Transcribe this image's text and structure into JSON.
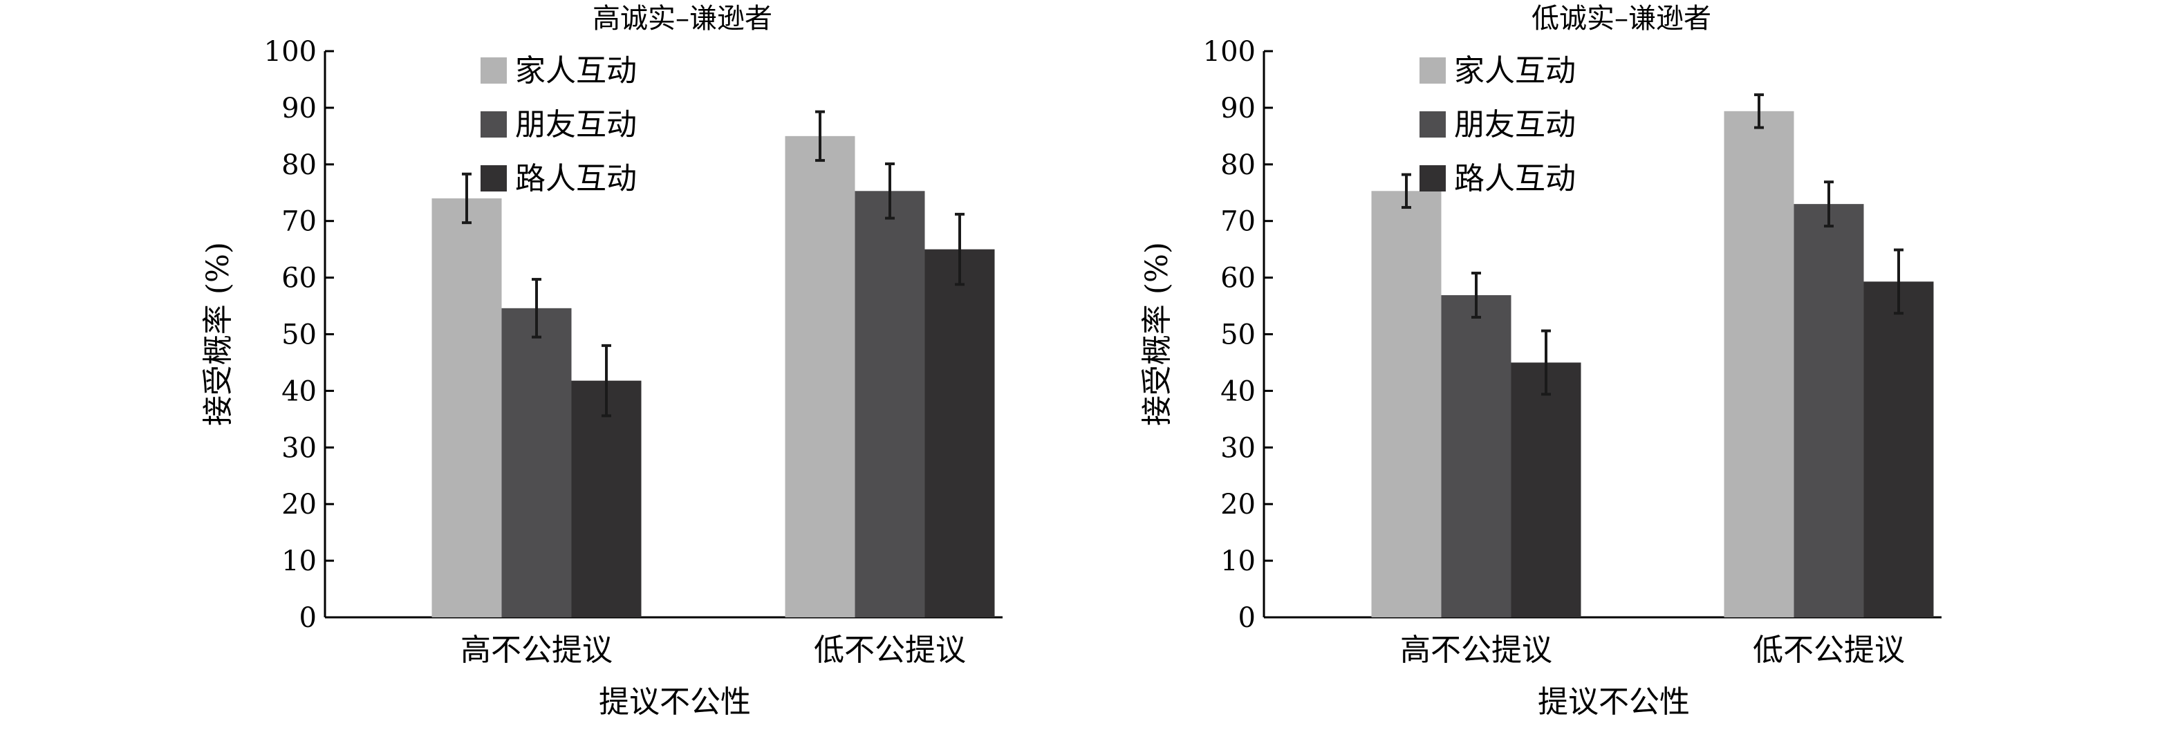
{
  "chart_data": [
    {
      "type": "bar",
      "title": "高诚实–谦逊者",
      "xlabel": "提议不公性",
      "ylabel": "接受概率 (%)",
      "ylim": [
        0,
        100
      ],
      "yticks": [
        0,
        10,
        20,
        30,
        40,
        50,
        60,
        70,
        80,
        90,
        100
      ],
      "categories": [
        "高不公提议",
        "低不公提议"
      ],
      "legend_position": "top-left",
      "series": [
        {
          "name": "家人互动",
          "color": "#b3b3b3",
          "values": [
            74,
            85
          ],
          "errors": [
            4.3,
            4.3
          ]
        },
        {
          "name": "朋友互动",
          "color": "#4f4e50",
          "values": [
            54.6,
            75.3
          ],
          "errors": [
            5.1,
            4.8
          ]
        },
        {
          "name": "路人互动",
          "color": "#323031",
          "values": [
            41.8,
            65
          ],
          "errors": [
            6.2,
            6.2
          ]
        }
      ]
    },
    {
      "type": "bar",
      "title": "低诚实–谦逊者",
      "xlabel": "提议不公性",
      "ylabel": "接受概率 (%)",
      "ylim": [
        0,
        100
      ],
      "yticks": [
        0,
        10,
        20,
        30,
        40,
        50,
        60,
        70,
        80,
        90,
        100
      ],
      "categories": [
        "高不公提议",
        "低不公提议"
      ],
      "legend_position": "top-left",
      "series": [
        {
          "name": "家人互动",
          "color": "#b3b3b3",
          "values": [
            75.3,
            89.4
          ],
          "errors": [
            2.9,
            2.9
          ]
        },
        {
          "name": "朋友互动",
          "color": "#4f4e50",
          "values": [
            56.9,
            73
          ],
          "errors": [
            3.9,
            3.9
          ]
        },
        {
          "name": "路人互动",
          "color": "#323031",
          "values": [
            45,
            59.3
          ],
          "errors": [
            5.6,
            5.6
          ]
        }
      ]
    }
  ]
}
